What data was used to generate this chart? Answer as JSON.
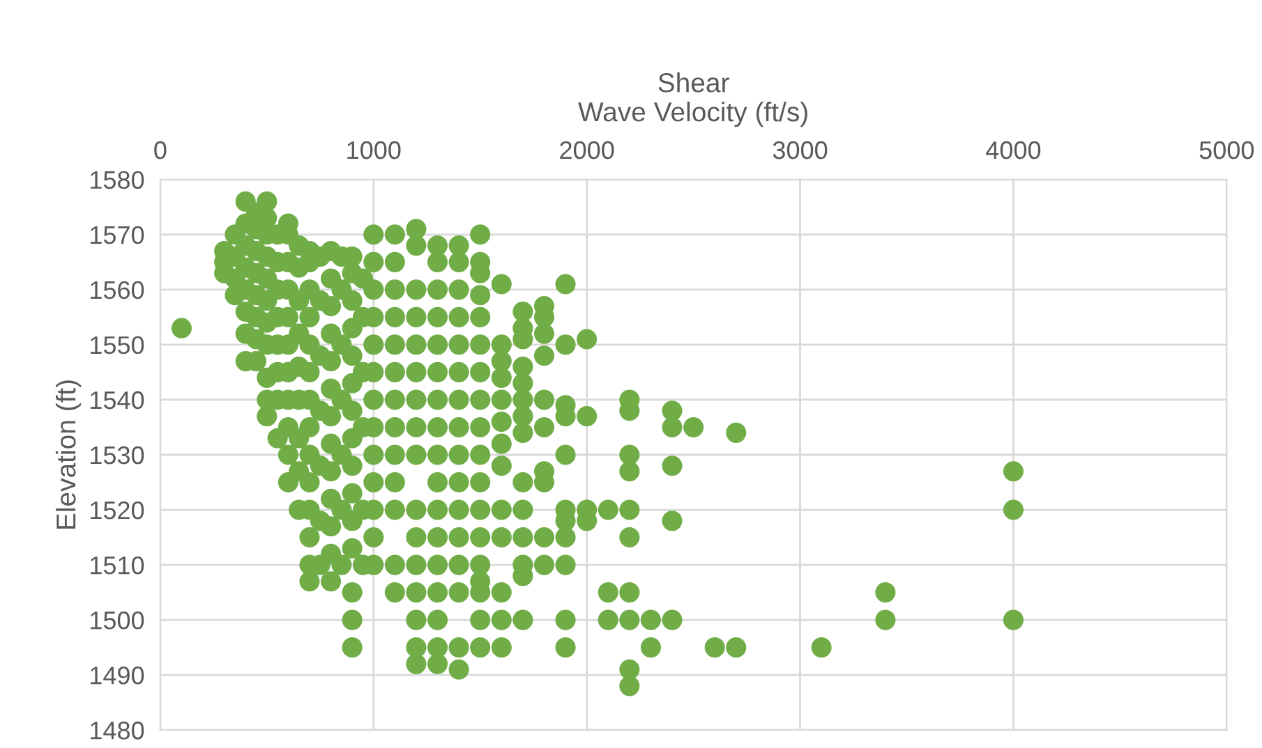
{
  "chart_data": {
    "type": "scatter",
    "xlabel": "Shear\nWave Velocity (ft/s)",
    "ylabel": "Elevation (ft)",
    "xlim": [
      0,
      5000
    ],
    "xticks": [
      0,
      1000,
      2000,
      3000,
      4000,
      5000
    ],
    "ylim": [
      1480,
      1580
    ],
    "yticks": [
      1480,
      1490,
      1500,
      1510,
      1520,
      1530,
      1540,
      1550,
      1560,
      1570,
      1580
    ],
    "grid": true,
    "marker": "circle",
    "legend": false,
    "series": [
      {
        "color": "#70ad47",
        "x": [
          100,
          300,
          300,
          300,
          350,
          350,
          350,
          350,
          400,
          400,
          400,
          400,
          400,
          400,
          400,
          400,
          450,
          450,
          450,
          450,
          450,
          450,
          450,
          450,
          500,
          500,
          500,
          500,
          500,
          500,
          500,
          500,
          500,
          500,
          500,
          550,
          550,
          550,
          550,
          550,
          550,
          550,
          550,
          600,
          600,
          600,
          600,
          600,
          600,
          600,
          600,
          600,
          600,
          600,
          650,
          650,
          650,
          650,
          650,
          650,
          650,
          650,
          650,
          700,
          700,
          700,
          700,
          700,
          700,
          700,
          700,
          700,
          700,
          700,
          700,
          700,
          700,
          750,
          750,
          750,
          750,
          750,
          750,
          750,
          800,
          800,
          800,
          800,
          800,
          800,
          800,
          800,
          800,
          800,
          800,
          800,
          800,
          850,
          850,
          850,
          850,
          850,
          850,
          850,
          900,
          900,
          900,
          900,
          900,
          900,
          900,
          900,
          900,
          900,
          900,
          900,
          900,
          900,
          900,
          950,
          950,
          950,
          950,
          950,
          950,
          1000,
          1000,
          1000,
          1000,
          1000,
          1000,
          1000,
          1000,
          1000,
          1000,
          1000,
          1000,
          1000,
          1100,
          1100,
          1100,
          1100,
          1100,
          1100,
          1100,
          1100,
          1100,
          1100,
          1100,
          1100,
          1100,
          1200,
          1200,
          1200,
          1200,
          1200,
          1200,
          1200,
          1200,
          1200,
          1200,
          1200,
          1200,
          1200,
          1200,
          1200,
          1200,
          1300,
          1300,
          1300,
          1300,
          1300,
          1300,
          1300,
          1300,
          1300,
          1300,
          1300,
          1300,
          1300,
          1300,
          1300,
          1300,
          1300,
          1400,
          1400,
          1400,
          1400,
          1400,
          1400,
          1400,
          1400,
          1400,
          1400,
          1400,
          1400,
          1400,
          1400,
          1400,
          1400,
          1500,
          1500,
          1500,
          1500,
          1500,
          1500,
          1500,
          1500,
          1500,
          1500,
          1500,
          1500,
          1500,
          1500,
          1500,
          1500,
          1500,
          1500,
          1600,
          1600,
          1600,
          1600,
          1600,
          1600,
          1600,
          1600,
          1600,
          1600,
          1600,
          1600,
          1600,
          1700,
          1700,
          1700,
          1700,
          1700,
          1700,
          1700,
          1700,
          1700,
          1700,
          1700,
          1700,
          1700,
          1700,
          1800,
          1800,
          1800,
          1800,
          1800,
          1800,
          1800,
          1800,
          1800,
          1800,
          1900,
          1900,
          1900,
          1900,
          1900,
          1900,
          1900,
          1900,
          1900,
          1900,
          1900,
          2000,
          2000,
          2000,
          2000,
          2100,
          2100,
          2100,
          2200,
          2200,
          2200,
          2200,
          2200,
          2200,
          2200,
          2200,
          2200,
          2200,
          2300,
          2300,
          2400,
          2400,
          2400,
          2400,
          2400,
          2500,
          2600,
          2700,
          2700,
          3100,
          3400,
          3400,
          4000,
          4000,
          4000
        ],
        "values": [
          1553,
          1563,
          1565,
          1567,
          1559,
          1562,
          1566,
          1570,
          1547,
          1552,
          1556,
          1560,
          1564,
          1568,
          1572,
          1576,
          1547,
          1551,
          1555,
          1559,
          1563,
          1567,
          1571,
          1574,
          1537,
          1540,
          1544,
          1550,
          1554,
          1558,
          1562,
          1566,
          1570,
          1573,
          1576,
          1533,
          1540,
          1545,
          1550,
          1555,
          1560,
          1565,
          1570,
          1525,
          1530,
          1535,
          1540,
          1545,
          1550,
          1555,
          1560,
          1565,
          1570,
          1572,
          1520,
          1527,
          1533,
          1540,
          1546,
          1552,
          1558,
          1564,
          1568,
          1507,
          1510,
          1515,
          1520,
          1525,
          1530,
          1535,
          1540,
          1545,
          1550,
          1555,
          1560,
          1565,
          1567,
          1510,
          1518,
          1528,
          1538,
          1548,
          1558,
          1566,
          1507,
          1512,
          1517,
          1522,
          1527,
          1532,
          1537,
          1542,
          1547,
          1552,
          1557,
          1562,
          1567,
          1510,
          1520,
          1530,
          1540,
          1550,
          1560,
          1566,
          1495,
          1500,
          1505,
          1513,
          1518,
          1523,
          1528,
          1533,
          1538,
          1543,
          1548,
          1553,
          1558,
          1563,
          1566,
          1510,
          1520,
          1535,
          1545,
          1555,
          1562,
          1510,
          1515,
          1520,
          1525,
          1530,
          1535,
          1540,
          1545,
          1550,
          1555,
          1560,
          1565,
          1570,
          1505,
          1510,
          1520,
          1525,
          1530,
          1535,
          1540,
          1545,
          1550,
          1555,
          1560,
          1565,
          1570,
          1492,
          1495,
          1500,
          1505,
          1510,
          1515,
          1520,
          1530,
          1535,
          1540,
          1545,
          1550,
          1555,
          1560,
          1568,
          1571,
          1492,
          1495,
          1500,
          1505,
          1510,
          1515,
          1520,
          1525,
          1530,
          1535,
          1540,
          1545,
          1550,
          1555,
          1560,
          1565,
          1568,
          1491,
          1495,
          1505,
          1510,
          1515,
          1520,
          1525,
          1530,
          1535,
          1540,
          1545,
          1550,
          1555,
          1560,
          1565,
          1568,
          1495,
          1500,
          1505,
          1507,
          1510,
          1515,
          1520,
          1525,
          1530,
          1535,
          1540,
          1545,
          1550,
          1555,
          1559,
          1563,
          1565,
          1570,
          1495,
          1500,
          1505,
          1515,
          1520,
          1528,
          1532,
          1536,
          1540,
          1544,
          1547,
          1550,
          1561,
          1500,
          1508,
          1510,
          1515,
          1520,
          1525,
          1534,
          1537,
          1540,
          1543,
          1546,
          1551,
          1553,
          1556,
          1510,
          1515,
          1525,
          1527,
          1535,
          1540,
          1548,
          1552,
          1555,
          1557,
          1495,
          1500,
          1510,
          1515,
          1518,
          1520,
          1530,
          1537,
          1539,
          1550,
          1561,
          1518,
          1520,
          1537,
          1551,
          1500,
          1505,
          1520,
          1488,
          1491,
          1500,
          1505,
          1515,
          1520,
          1527,
          1530,
          1538,
          1540,
          1495,
          1500,
          1500,
          1518,
          1528,
          1535,
          1538,
          1535,
          1495,
          1495,
          1534,
          1495,
          1500,
          1505,
          1500,
          1520,
          1527
        ]
      }
    ]
  }
}
